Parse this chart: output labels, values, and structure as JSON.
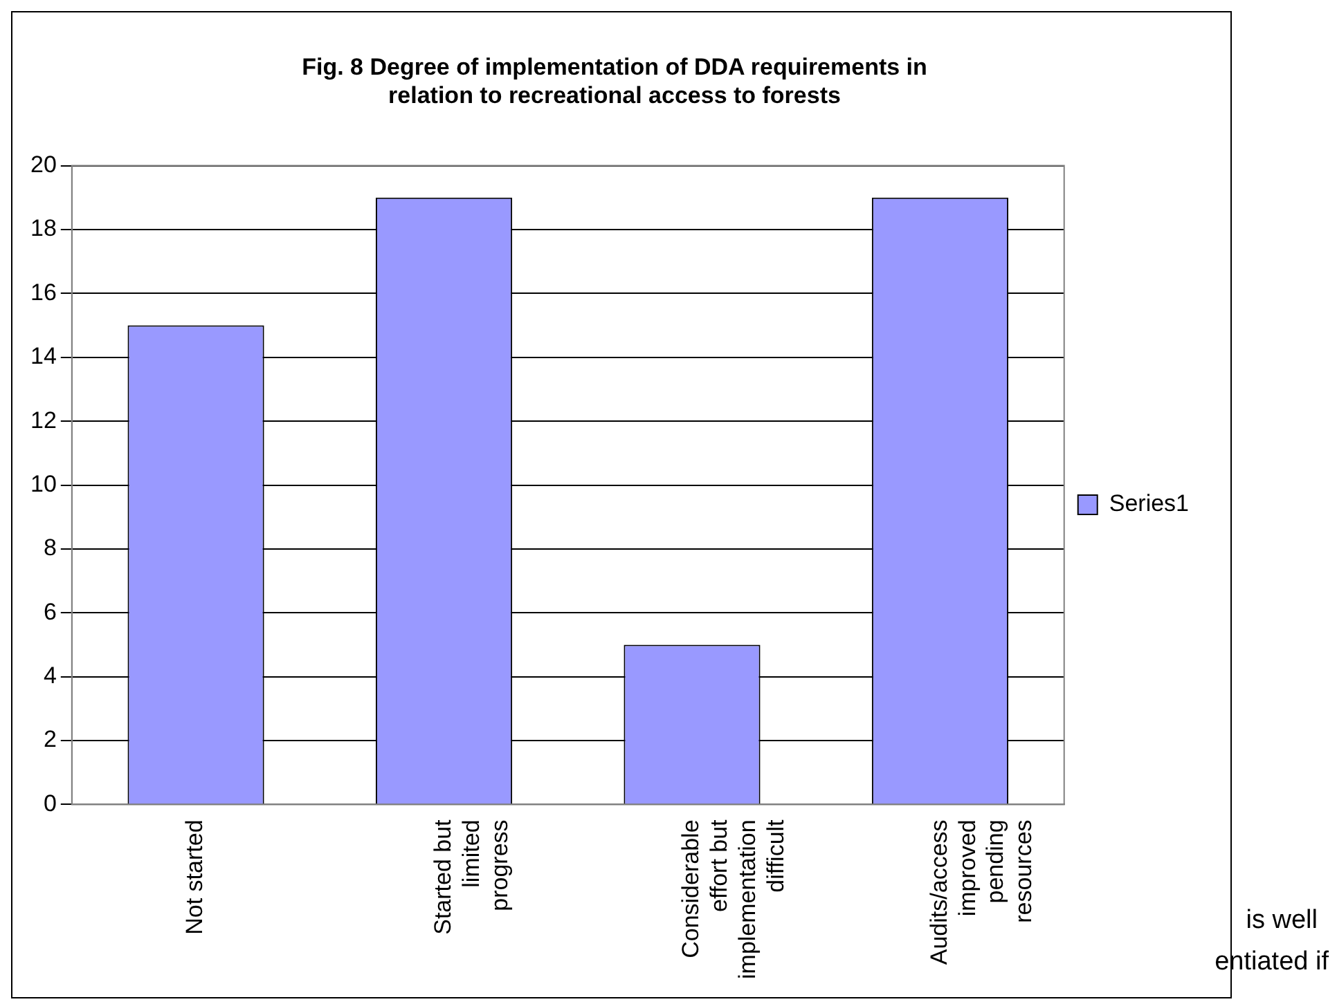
{
  "chart_data": {
    "type": "bar",
    "title": "Fig. 8 Degree of implementation of DDA requirements in relation to recreational access to forests",
    "categories": [
      "Not started",
      "Started but limited progress",
      "Considerable effort but implementation difficult",
      "Audits/access improved pending resources"
    ],
    "series": [
      {
        "name": "Series1",
        "color": "#9999ff",
        "values": [
          15,
          19,
          5,
          19
        ]
      }
    ],
    "ylim": [
      0,
      20
    ],
    "yticks": [
      0,
      2,
      4,
      6,
      8,
      10,
      12,
      14,
      16,
      18,
      20
    ],
    "grid": "y",
    "legend": "right",
    "annotations": [
      "is well",
      "entiated if"
    ]
  }
}
